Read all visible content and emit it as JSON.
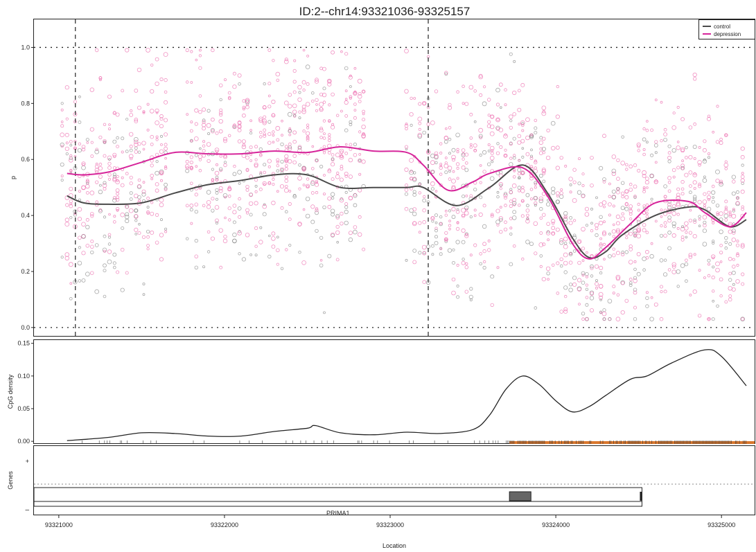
{
  "chart_data": [
    {
      "type": "scatter",
      "panel": "methylation",
      "title": "ID:2--chr14:93321036-93325157",
      "ylabel": "p",
      "xlim": [
        93320850,
        93325200
      ],
      "ylim": [
        -0.03,
        1.1
      ],
      "yticks": [
        "0.0",
        "0.2",
        "0.4",
        "0.6",
        "0.8",
        "1.0"
      ],
      "hlines_dotted": [
        0.0,
        1.0
      ],
      "vlines_dashed": [
        93321100,
        93323230
      ],
      "legend": {
        "placement": "top-right",
        "entries": [
          "control",
          "depression"
        ]
      },
      "colors": {
        "control": "#4a4a4a",
        "depression": "#d6249a",
        "depression_points": "#ef7fb8",
        "control_points": "#6e6e6e"
      },
      "series": [
        {
          "name": "control",
          "x": [
            93321050,
            93321150,
            93321300,
            93321500,
            93321700,
            93321900,
            93322100,
            93322300,
            93322500,
            93322700,
            93322900,
            93323100,
            93323200,
            93323400,
            93323600,
            93323800,
            93323950,
            93324100,
            93324200,
            93324300,
            93324400,
            93324600,
            93324800,
            93324900,
            93325050,
            93325150
          ],
          "values": [
            0.47,
            0.445,
            0.44,
            0.445,
            0.48,
            0.51,
            0.525,
            0.545,
            0.545,
            0.5,
            0.5,
            0.5,
            0.5,
            0.435,
            0.5,
            0.58,
            0.48,
            0.32,
            0.25,
            0.27,
            0.33,
            0.4,
            0.43,
            0.42,
            0.36,
            0.385
          ]
        },
        {
          "name": "depression",
          "x": [
            93321050,
            93321150,
            93321300,
            93321500,
            93321700,
            93321900,
            93322100,
            93322300,
            93322500,
            93322700,
            93322900,
            93323100,
            93323200,
            93323350,
            93323500,
            93323600,
            93323800,
            93323950,
            93324100,
            93324200,
            93324300,
            93324450,
            93324600,
            93324800,
            93324900,
            93325050,
            93325150
          ],
          "values": [
            0.55,
            0.545,
            0.555,
            0.59,
            0.625,
            0.62,
            0.62,
            0.63,
            0.625,
            0.645,
            0.63,
            0.625,
            0.58,
            0.49,
            0.52,
            0.55,
            0.57,
            0.47,
            0.3,
            0.245,
            0.285,
            0.37,
            0.445,
            0.45,
            0.41,
            0.36,
            0.41
          ]
        }
      ]
    },
    {
      "type": "line",
      "panel": "cpg-density",
      "ylabel": "CpG density",
      "ylim": [
        -0.003,
        0.155
      ],
      "yticks": [
        "0.00",
        "0.05",
        "0.10",
        "0.15"
      ],
      "x": [
        93321050,
        93321300,
        93321500,
        93321700,
        93321900,
        93322100,
        93322300,
        93322500,
        93322550,
        93322700,
        93322900,
        93323100,
        93323300,
        93323500,
        93323600,
        93323700,
        93323800,
        93323900,
        93324000,
        93324100,
        93324200,
        93324300,
        93324450,
        93324550,
        93324700,
        93324900,
        93325000,
        93325150
      ],
      "values": [
        0.001,
        0.006,
        0.013,
        0.012,
        0.008,
        0.008,
        0.015,
        0.02,
        0.024,
        0.013,
        0.01,
        0.014,
        0.012,
        0.018,
        0.04,
        0.08,
        0.1,
        0.087,
        0.062,
        0.045,
        0.053,
        0.07,
        0.095,
        0.1,
        0.12,
        0.14,
        0.13,
        0.085
      ],
      "cpg_island": {
        "start": 93323720,
        "end": 93325200,
        "color": "#d9772e"
      }
    },
    {
      "type": "table",
      "panel": "genes",
      "ylabel": "Genes",
      "strand_labels": [
        "+",
        "–"
      ],
      "gene_name": "PRIMA1",
      "gene_start": 93320850,
      "gene_end": 93324520,
      "exon_start": 93323720,
      "exon_end": 93323850,
      "xlabel": "Location",
      "xticks": [
        "93321000",
        "93322000",
        "93323000",
        "93324000",
        "93325000"
      ]
    }
  ]
}
